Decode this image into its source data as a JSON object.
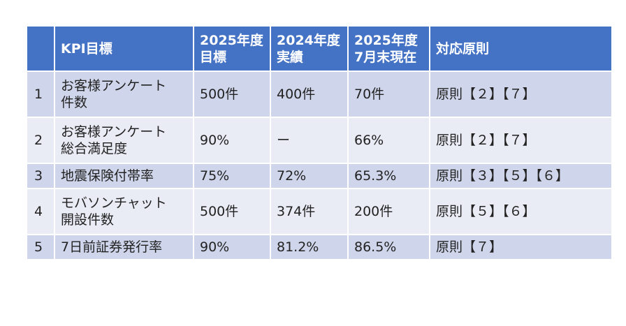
{
  "colors": {
    "header": "#4472C4",
    "row_dark": "#CFD5EA",
    "row_light": "#E9EBF5"
  },
  "headers": [
    "",
    "KPI目標",
    "2025年度\n目標",
    "2024年度\n実績",
    "2025年度\n7月末現在",
    "対応原則"
  ],
  "rows": [
    [
      "1",
      "お客様アンケート\n件数",
      "500件",
      "400件",
      "70件",
      "原則【２】【７】"
    ],
    [
      "2",
      "お客様アンケート\n総合満足度",
      "90%",
      "ー",
      "66%",
      "原則【２】【７】"
    ],
    [
      "3",
      "地震保険付帯率",
      "75%",
      "72%",
      "65.3%",
      "原則【３】【５】【６】"
    ],
    [
      "4",
      "モバソンチャット\n開設件数",
      "500件",
      "374件",
      "200件",
      "原則【５】【６】"
    ],
    [
      "5",
      "7日前証券発行率",
      "90%",
      "81.2%",
      "86.5%",
      "原則【７】"
    ]
  ]
}
